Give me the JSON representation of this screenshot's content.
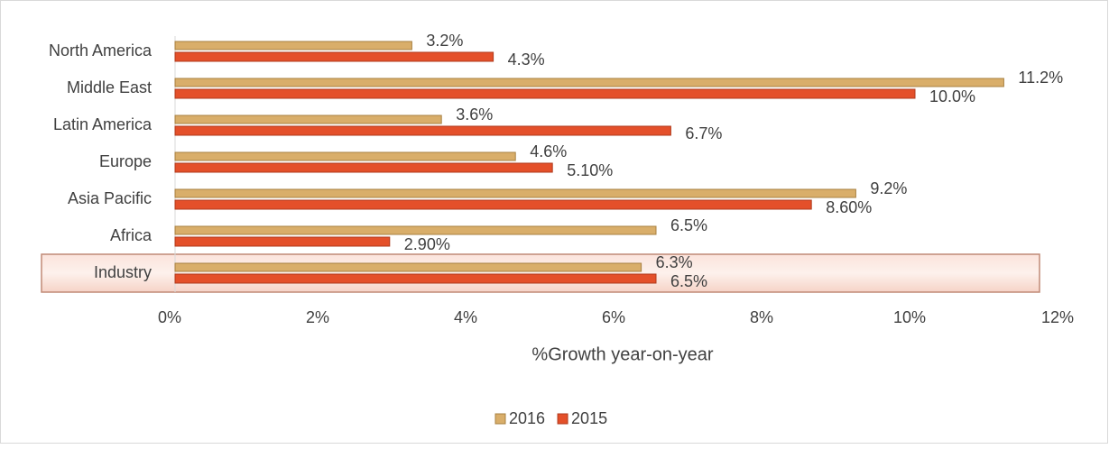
{
  "chart_data": {
    "type": "hbar",
    "categories": [
      "North America",
      "Middle East",
      "Latin America",
      "Europe",
      "Asia Pacific",
      "Africa",
      "Industry"
    ],
    "series": [
      {
        "name": "2016",
        "color": "#d9ae6a",
        "values": [
          3.2,
          11.2,
          3.6,
          4.6,
          9.2,
          6.5,
          6.3
        ],
        "value_labels": [
          "3.2%",
          "11.2%",
          "3.6%",
          "4.6%",
          "9.2%",
          "6.5%",
          "6.3%"
        ]
      },
      {
        "name": "2015",
        "color": "#e4502a",
        "values": [
          4.3,
          10.0,
          6.7,
          5.1,
          8.6,
          2.9,
          6.5
        ],
        "value_labels": [
          "4.3%",
          "10.0%",
          "6.7%",
          "5.10%",
          "8.60%",
          "2.90%",
          "6.5%"
        ]
      }
    ],
    "xlabel": "%Growth year-on-year",
    "xlim": [
      0,
      12
    ],
    "xticks": [
      {
        "value": 0,
        "label": "0%"
      },
      {
        "value": 2,
        "label": "2%"
      },
      {
        "value": 4,
        "label": "4%"
      },
      {
        "value": 6,
        "label": "6%"
      },
      {
        "value": 8,
        "label": "8%"
      },
      {
        "value": 10,
        "label": "10%"
      },
      {
        "value": 12,
        "label": "12%"
      }
    ],
    "legend": "bottom"
  }
}
